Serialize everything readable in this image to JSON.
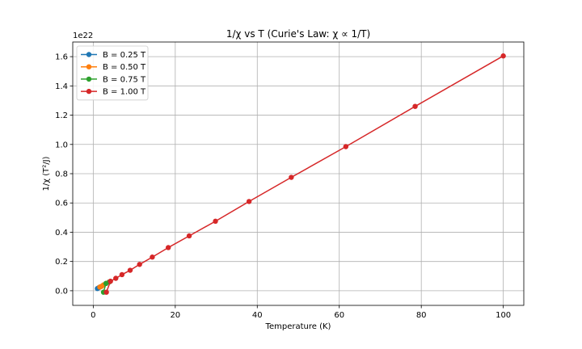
{
  "chart_data": {
    "type": "line",
    "title": "1/χ vs T (Curie's Law: χ ∝ 1/T)",
    "xlabel": "Temperature (K)",
    "ylabel": "1/χ (T²/J)",
    "y_offset_text": "1e22",
    "xlim": [
      -5,
      105
    ],
    "ylim": [
      -0.1,
      1.7
    ],
    "x_ticks": [
      0,
      20,
      40,
      60,
      80,
      100
    ],
    "x_tick_labels": [
      "0",
      "20",
      "40",
      "60",
      "80",
      "100"
    ],
    "y_ticks": [
      0.0,
      0.2,
      0.4,
      0.6,
      0.8,
      1.0,
      1.2,
      1.4,
      1.6
    ],
    "y_tick_labels": [
      "0.0",
      "0.2",
      "0.4",
      "0.6",
      "0.8",
      "1.0",
      "1.2",
      "1.4",
      "1.6"
    ],
    "grid": true,
    "legend_position": "top-left",
    "series": [
      {
        "name": "B = 0.25 T",
        "color": "#1f77b4",
        "x": [
          1.0,
          1.3,
          1.6,
          2.0,
          2.5,
          3.1
        ],
        "y": [
          0.015,
          0.02,
          0.025,
          0.03,
          0.04,
          0.05
        ]
      },
      {
        "name": "B = 0.50 T",
        "color": "#ff7f0e",
        "x": [
          1.6,
          2.0,
          2.5,
          3.1,
          3.9
        ],
        "y": [
          0.025,
          0.03,
          0.04,
          0.05,
          0.06
        ]
      },
      {
        "name": "B = 0.75 T",
        "color": "#2ca02c",
        "x": [
          2.5,
          3.1,
          3.9
        ],
        "y": [
          -0.01,
          0.05,
          0.06
        ]
      },
      {
        "name": "B = 1.00 T",
        "color": "#d62728",
        "x": [
          3.2,
          4.2,
          5.5,
          7.0,
          9.0,
          11.3,
          14.4,
          18.3,
          23.4,
          29.8,
          38.0,
          48.3,
          61.6,
          78.5,
          100.0
        ],
        "y": [
          -0.01,
          0.065,
          0.085,
          0.11,
          0.14,
          0.18,
          0.23,
          0.295,
          0.375,
          0.475,
          0.61,
          0.775,
          0.985,
          1.26,
          1.605
        ]
      }
    ]
  }
}
